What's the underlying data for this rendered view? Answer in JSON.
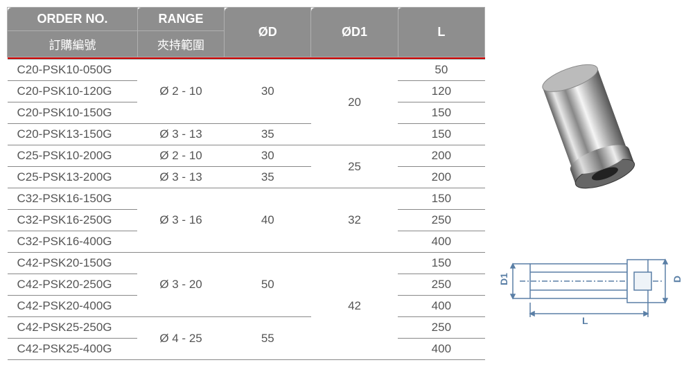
{
  "headers": {
    "order_en": "ORDER NO.",
    "order_zh": "訂購編號",
    "range_en": "RANGE",
    "range_zh": "夾持範圍",
    "od": "ØD",
    "od1": "ØD1",
    "l": "L"
  },
  "rows": [
    {
      "order": "C20-PSK10-050G",
      "l": "50"
    },
    {
      "order": "C20-PSK10-120G",
      "l": "120"
    },
    {
      "order": "C20-PSK10-150G",
      "l": "150"
    },
    {
      "order": "C20-PSK13-150G",
      "l": "150"
    },
    {
      "order": "C25-PSK10-200G",
      "l": "200"
    },
    {
      "order": "C25-PSK13-200G",
      "l": "200"
    },
    {
      "order": "C32-PSK16-150G",
      "l": "150"
    },
    {
      "order": "C32-PSK16-250G",
      "l": "250"
    },
    {
      "order": "C32-PSK16-400G",
      "l": "400"
    },
    {
      "order": "C42-PSK20-150G",
      "l": "150"
    },
    {
      "order": "C42-PSK20-250G",
      "l": "250"
    },
    {
      "order": "C42-PSK20-400G",
      "l": "400"
    },
    {
      "order": "C42-PSK25-250G",
      "l": "250"
    },
    {
      "order": "C42-PSK25-400G",
      "l": "400"
    }
  ],
  "range_groups": [
    {
      "value": "Ø 2 - 10",
      "span": 3
    },
    {
      "value": "Ø 3 - 13",
      "span": 1
    },
    {
      "value": "Ø 2 - 10",
      "span": 1
    },
    {
      "value": "Ø 3 - 13",
      "span": 1
    },
    {
      "value": "Ø 3 - 16",
      "span": 3
    },
    {
      "value": "Ø 3 - 20",
      "span": 3
    },
    {
      "value": "Ø 4 - 25",
      "span": 2
    }
  ],
  "od_groups": [
    {
      "value": "30",
      "span": 3
    },
    {
      "value": "35",
      "span": 1
    },
    {
      "value": "30",
      "span": 1
    },
    {
      "value": "35",
      "span": 1
    },
    {
      "value": "40",
      "span": 3
    },
    {
      "value": "50",
      "span": 3
    },
    {
      "value": "55",
      "span": 2
    }
  ],
  "od1_groups": [
    {
      "value": "20",
      "span": 4
    },
    {
      "value": "25",
      "span": 2
    },
    {
      "value": "32",
      "span": 3
    },
    {
      "value": "42",
      "span": 5
    }
  ],
  "diagram_labels": {
    "d1": "D1",
    "d": "D",
    "l": "L"
  },
  "colors": {
    "header_bg": "#8e8e8e",
    "header_fg": "#ffffff",
    "red_line": "#d40000",
    "border": "#888888",
    "cell_text": "#555555",
    "diagram_line": "#5a7fa6"
  },
  "column_widths_pct": [
    27,
    18,
    18,
    18,
    18
  ]
}
